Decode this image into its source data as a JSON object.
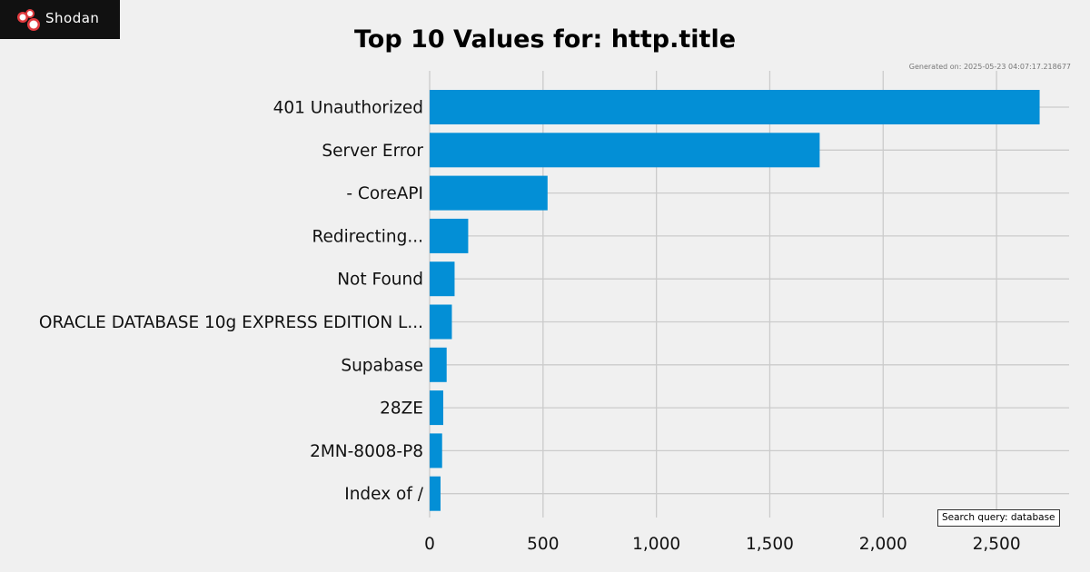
{
  "brand": {
    "logo_text": "Shodan",
    "logo_icon": "shodan-logo-icon",
    "logo_bg": "#111111",
    "logo_accent": "#e03a3e"
  },
  "header": {
    "generated": "Generated on: 2025-05-23 04:07:17.218677"
  },
  "footer": {
    "search_query": "Search query: database"
  },
  "chart_data": {
    "type": "bar",
    "orientation": "horizontal",
    "title": "Top 10 Values for: http.title",
    "xlabel": "",
    "ylabel": "",
    "categories": [
      "401 Unauthorized",
      "Server Error",
      "- CoreAPI",
      "Redirecting...",
      "Not Found",
      "ORACLE DATABASE 10g EXPRESS EDITION L...",
      "Supabase",
      "28ZE",
      "2MN-8008-P8",
      "Index of /"
    ],
    "values": [
      2690,
      1720,
      520,
      170,
      110,
      98,
      75,
      60,
      55,
      48
    ],
    "xlim": [
      0,
      2820
    ],
    "xticks": [
      0,
      500,
      1000,
      1500,
      2000,
      2500
    ],
    "xtick_labels": [
      "0",
      "500",
      "1,000",
      "1,500",
      "2,000",
      "2,500"
    ],
    "grid": true,
    "bar_color": "#038fd6",
    "grid_color": "#cbcbcb"
  }
}
